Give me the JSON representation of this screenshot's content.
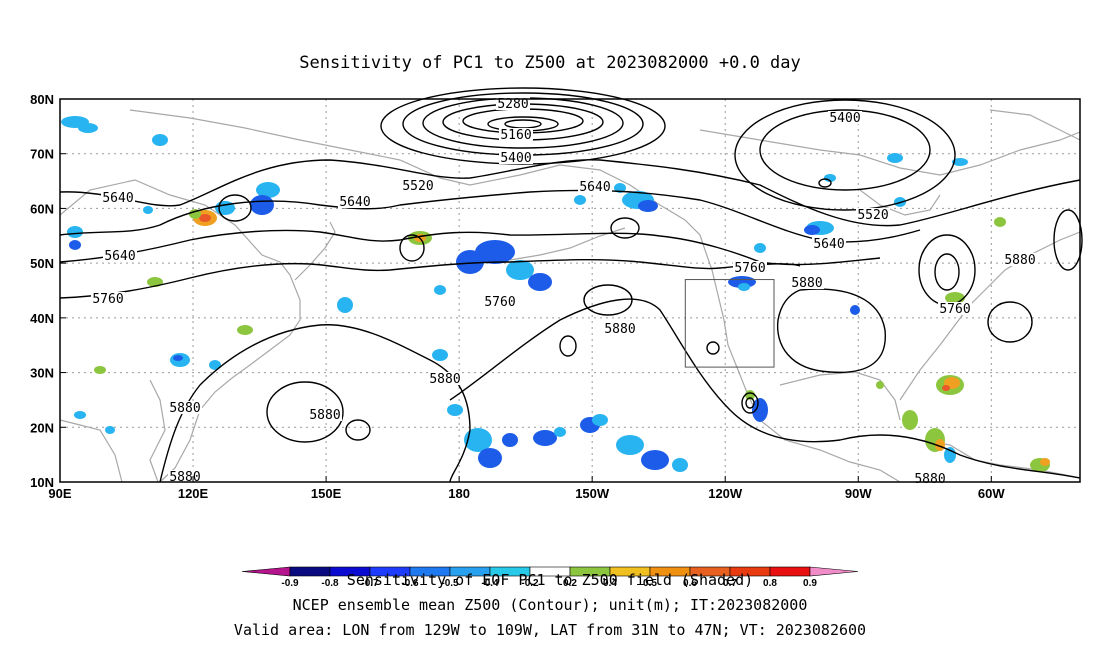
{
  "title": "Sensitivity of PC1 to Z500 at 2023082000 +0.0 day",
  "map": {
    "lat_ticks": [
      "80N",
      "70N",
      "60N",
      "50N",
      "40N",
      "30N",
      "20N",
      "10N"
    ],
    "lon_ticks": [
      "90E",
      "120E",
      "150E",
      "180",
      "150W",
      "120W",
      "90W",
      "60W"
    ],
    "extent": {
      "lon_min": 90,
      "lon_max": 320,
      "lat_min": 10,
      "lat_max": 80
    },
    "valid_box": {
      "lon_west": -129,
      "lon_east": -109,
      "lat_south": 31,
      "lat_north": 47
    },
    "contour_labels": [
      "5280",
      "5160",
      "5400",
      "5400",
      "5520",
      "5640",
      "5640",
      "5640",
      "5520",
      "5640",
      "5640",
      "5760",
      "5760",
      "5880",
      "5760",
      "5880",
      "5760",
      "5880",
      "5880",
      "5880",
      "5880",
      "5880",
      "5880"
    ],
    "shading_colors": {
      "neg_strong": "#1020c0",
      "neg": "#1c5ce8",
      "neg_weak": "#28b4f0",
      "pos_weak": "#8cc63f",
      "pos": "#f0a020",
      "pos_strong": "#e85828"
    }
  },
  "colorbar": {
    "labels": [
      "-0.9",
      "-0.8",
      "-0.7",
      "-0.6",
      "-0.5",
      "-0.4",
      "-0.2",
      "0.2",
      "0.4",
      "0.5",
      "0.6",
      "0.7",
      "0.8",
      "0.9"
    ],
    "colors": [
      "#0a0a80",
      "#0a0ad0",
      "#1e3cff",
      "#1e78f0",
      "#28a0f0",
      "#28c8e8",
      "#ffffff",
      "#8cc63f",
      "#f0c020",
      "#f09010",
      "#e86020",
      "#e83c10",
      "#e81010"
    ],
    "left_tip_color": "#b4148c",
    "right_tip_color": "#f08cc8"
  },
  "footer": {
    "line1": "Sensitivity of EOF PC1 to Z500 field (Shaded)",
    "line2": "NCEP ensemble mean Z500 (Contour); unit(m); IT:2023082000",
    "line3": "Valid area: LON from 129W to 109W, LAT from 31N to 47N; VT: 2023082600"
  }
}
